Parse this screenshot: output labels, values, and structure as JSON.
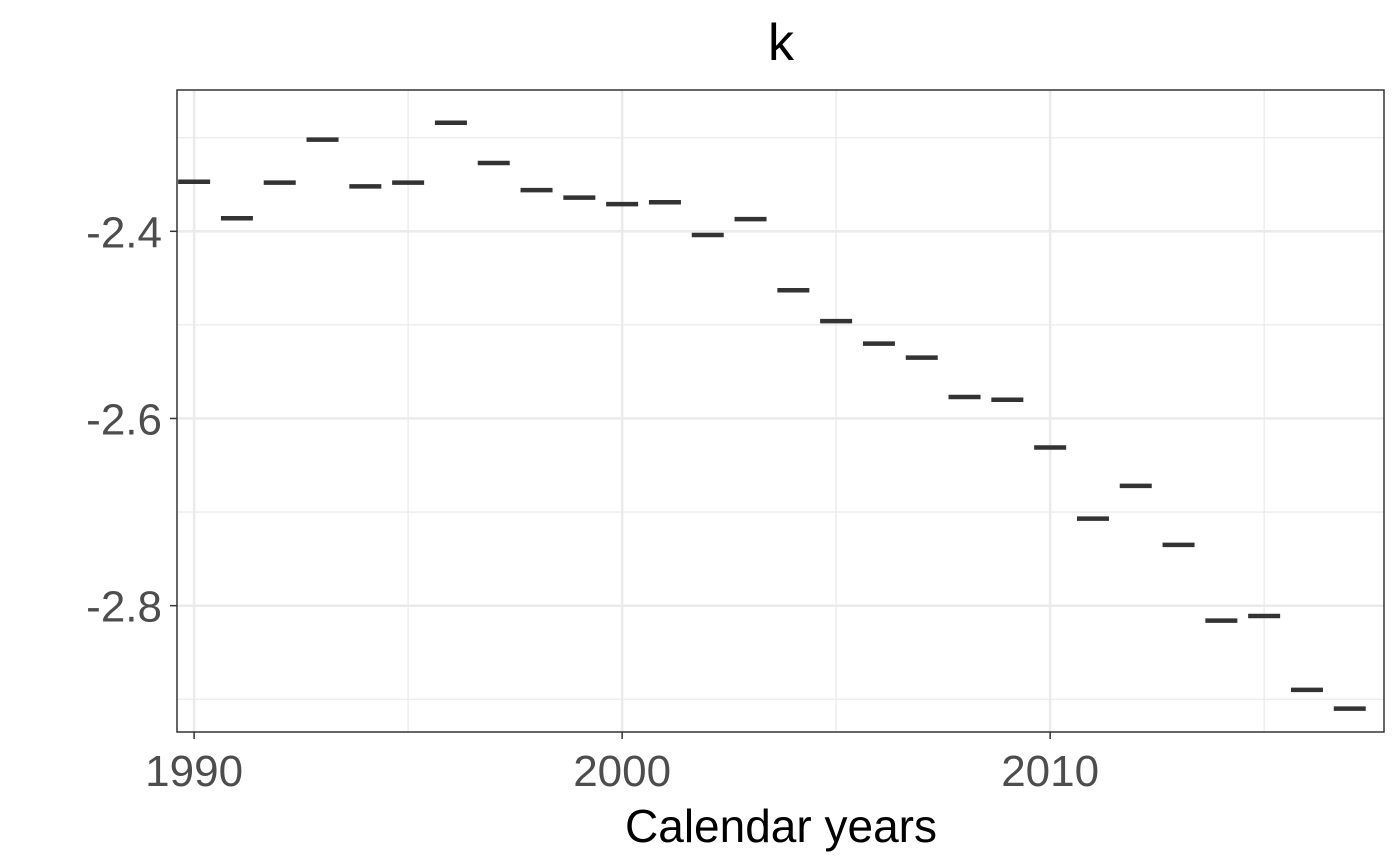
{
  "chart_data": {
    "type": "scatter",
    "title": "k",
    "xlabel": "Calendar years",
    "ylabel": "",
    "x_ticks": [
      1990,
      2000,
      2010
    ],
    "y_ticks": [
      -2.4,
      -2.6,
      -2.8
    ],
    "x_tick_labels": [
      "1990",
      "2000",
      "2010"
    ],
    "y_tick_labels": [
      "-2.4",
      "-2.6",
      "-2.8"
    ],
    "xlim": [
      1989.6,
      2017.8
    ],
    "ylim": [
      -2.935,
      -2.249
    ],
    "grid": true,
    "legend": "none",
    "marker": "horizontal-dash",
    "color": "#333333",
    "grid_color": "#ebebeb",
    "series": [
      {
        "x": [
          1990,
          1991,
          1992,
          1993,
          1994,
          1995,
          1996,
          1997,
          1998,
          1999,
          2000,
          2001,
          2002,
          2003,
          2004,
          2005,
          2006,
          2007,
          2008,
          2009,
          2010,
          2011,
          2012,
          2013,
          2014,
          2015,
          2016,
          2017
        ],
        "y": [
          -2.347,
          -2.386,
          -2.348,
          -2.302,
          -2.352,
          -2.348,
          -2.284,
          -2.327,
          -2.356,
          -2.364,
          -2.371,
          -2.369,
          -2.404,
          -2.387,
          -2.463,
          -2.496,
          -2.52,
          -2.535,
          -2.577,
          -2.58,
          -2.631,
          -2.707,
          -2.672,
          -2.735,
          -2.816,
          -2.811,
          -2.89,
          -2.91
        ]
      }
    ]
  }
}
